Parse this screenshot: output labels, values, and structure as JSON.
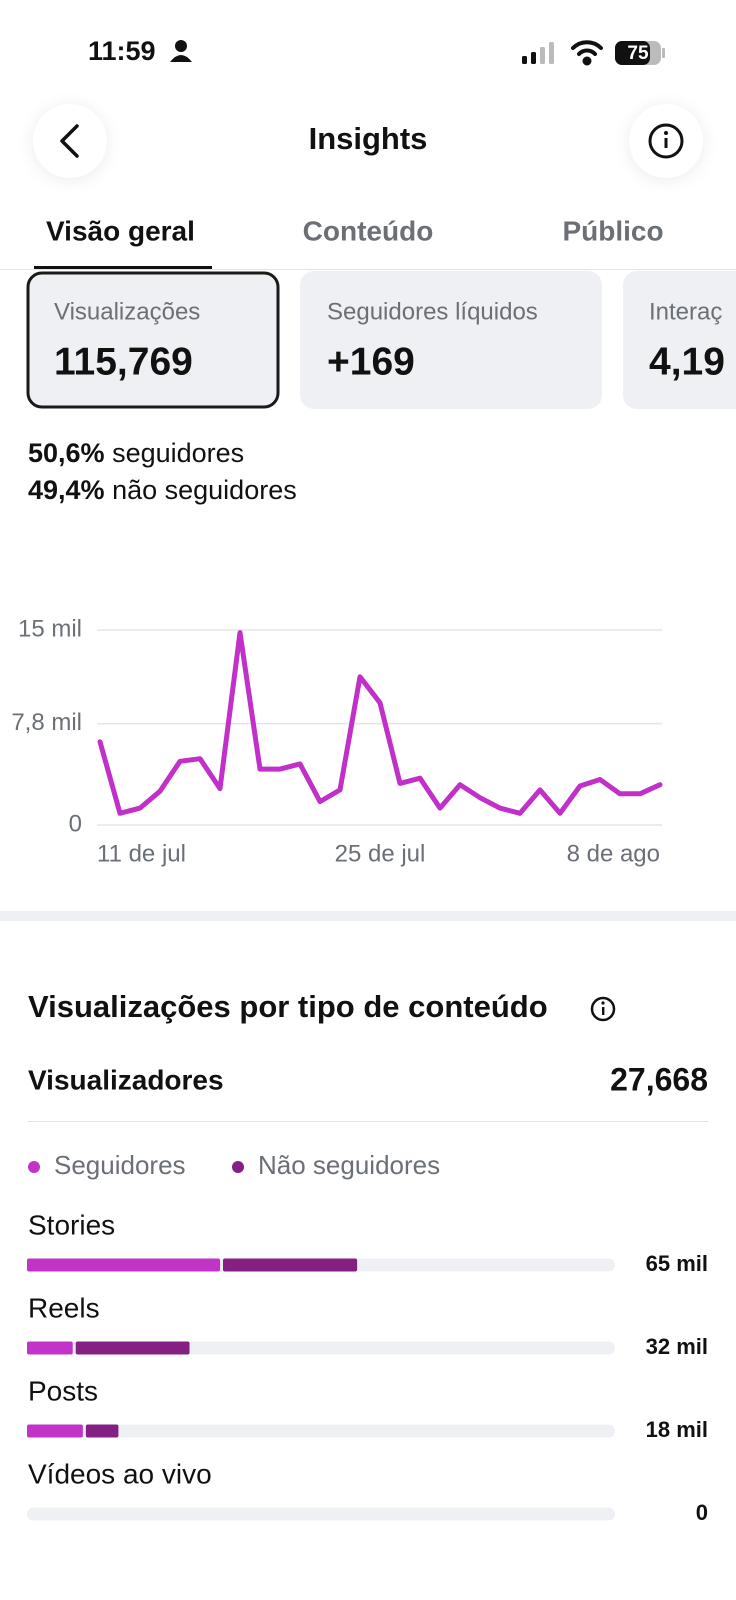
{
  "status_bar": {
    "time": "11:59",
    "battery": "75"
  },
  "header": {
    "title": "Insights"
  },
  "tabs": [
    "Visão geral",
    "Conteúdo",
    "Público"
  ],
  "metrics": [
    {
      "label": "Visualizações",
      "value": "115,769"
    },
    {
      "label": "Seguidores líquidos",
      "value": "+169"
    },
    {
      "label": "Interaç",
      "value": "4,19"
    }
  ],
  "audience": [
    {
      "percent": "50,6%",
      "label": "seguidores"
    },
    {
      "percent": "49,4%",
      "label": "não seguidores"
    }
  ],
  "chart_data": [
    {
      "type": "line",
      "color": "#c130c8",
      "categories": [
        "11 de jul",
        null,
        null,
        null,
        null,
        null,
        null,
        null,
        null,
        null,
        null,
        null,
        null,
        null,
        "25 de jul",
        null,
        null,
        null,
        null,
        null,
        null,
        null,
        null,
        null,
        null,
        null,
        null,
        null,
        "8 de ago"
      ],
      "values": [
        6.4,
        0.9,
        1.3,
        2.6,
        4.9,
        5.1,
        2.8,
        14.8,
        4.3,
        4.3,
        4.7,
        1.8,
        2.7,
        11.4,
        9.4,
        3.2,
        3.6,
        1.3,
        3.1,
        2.1,
        1.3,
        0.9,
        2.7,
        0.9,
        3.0,
        3.5,
        2.4,
        2.4,
        3.1
      ],
      "ylim": [
        0,
        15
      ],
      "yticks": [
        0,
        {
          "value": 7.8,
          "label": "7,8 mil"
        },
        {
          "value": 15,
          "label": "15 mil"
        }
      ],
      "grid": true
    },
    {
      "type": "stacked_bar",
      "title": "Visualizações por tipo de conteúdo",
      "orientation": "horizontal",
      "categories": [
        "Stories",
        "Reels",
        "Posts",
        "Vídeos ao vivo"
      ],
      "series": [
        {
          "name": "Seguidores",
          "color": "#c234c8",
          "values": [
            38,
            9,
            11,
            0
          ]
        },
        {
          "name": "Não seguidores",
          "color": "#841f84",
          "values": [
            27,
            23,
            7,
            0
          ]
        }
      ],
      "total_labels": [
        "65 mil",
        "32 mil",
        "18 mil",
        "0"
      ],
      "xlim": [
        0,
        115.769
      ]
    }
  ],
  "viewers": {
    "label": "Visualizadores",
    "value": "27,668"
  }
}
